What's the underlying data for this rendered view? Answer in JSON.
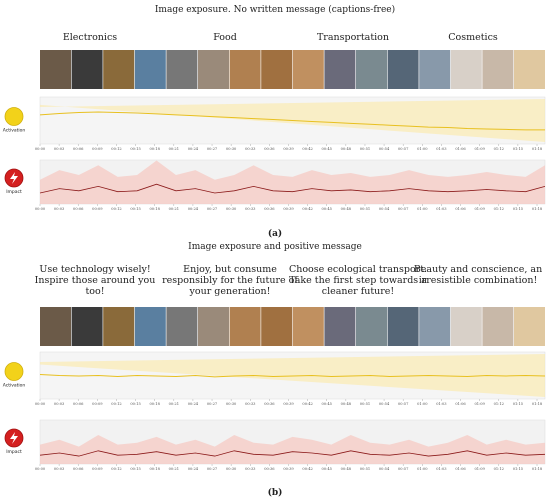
{
  "time_ticks": [
    "00:00",
    "00:03",
    "00:06",
    "00:09",
    "00:12",
    "00:15",
    "00:18",
    "00:21",
    "00:24",
    "00:27",
    "00:30",
    "00:33",
    "00:36",
    "00:39",
    "00:42",
    "00:45",
    "00:48",
    "00:51",
    "00:54",
    "00:57",
    "01:00",
    "01:03",
    "01:06",
    "01:09",
    "01:12",
    "01:15",
    "01:18"
  ],
  "panels": [
    {
      "title": "Image exposure. No written message (captions-free)",
      "label": "(a)",
      "captions": [
        [
          "Electronics"
        ],
        [
          "Food"
        ],
        [
          "Transportation"
        ],
        [
          "Cosmetics"
        ]
      ],
      "activation": {
        "label": "Activation",
        "values": [
          0.62,
          0.65,
          0.67,
          0.68,
          0.67,
          0.66,
          0.64,
          0.62,
          0.6,
          0.58,
          0.56,
          0.54,
          0.52,
          0.5,
          0.48,
          0.46,
          0.44,
          0.42,
          0.4,
          0.38,
          0.36,
          0.35,
          0.33,
          0.32,
          0.31,
          0.3,
          0.3
        ]
      },
      "impact": {
        "label": "Impact",
        "values": [
          0.25,
          0.35,
          0.3,
          0.4,
          0.28,
          0.3,
          0.45,
          0.3,
          0.35,
          0.25,
          0.3,
          0.4,
          0.3,
          0.28,
          0.35,
          0.3,
          0.32,
          0.28,
          0.3,
          0.35,
          0.3,
          0.28,
          0.3,
          0.33,
          0.3,
          0.28,
          0.4
        ]
      }
    },
    {
      "title": "Image exposure and positive message",
      "label": "(b)",
      "captions": [
        [
          "Use technology wisely!",
          "Inspire those around you",
          "too!"
        ],
        [
          "Enjoy, but consume",
          "responsibly for the future of",
          "your generation!"
        ],
        [
          "Choose ecological transport.",
          "Take the first step towards a",
          "cleaner future!"
        ],
        [
          "Beauty and conscience, an",
          "irresistible combination!"
        ]
      ],
      "activation": {
        "label": "Activation",
        "values": [
          0.52,
          0.5,
          0.49,
          0.5,
          0.48,
          0.5,
          0.49,
          0.48,
          0.5,
          0.47,
          0.49,
          0.5,
          0.48,
          0.49,
          0.5,
          0.48,
          0.49,
          0.5,
          0.48,
          0.49,
          0.5,
          0.49,
          0.48,
          0.5,
          0.49,
          0.5,
          0.49
        ]
      },
      "impact": {
        "label": "Impact",
        "values": [
          0.2,
          0.25,
          0.18,
          0.3,
          0.2,
          0.22,
          0.28,
          0.2,
          0.25,
          0.18,
          0.3,
          0.22,
          0.2,
          0.28,
          0.25,
          0.2,
          0.3,
          0.22,
          0.2,
          0.25,
          0.18,
          0.22,
          0.3,
          0.2,
          0.25,
          0.2,
          0.22
        ]
      }
    }
  ]
}
